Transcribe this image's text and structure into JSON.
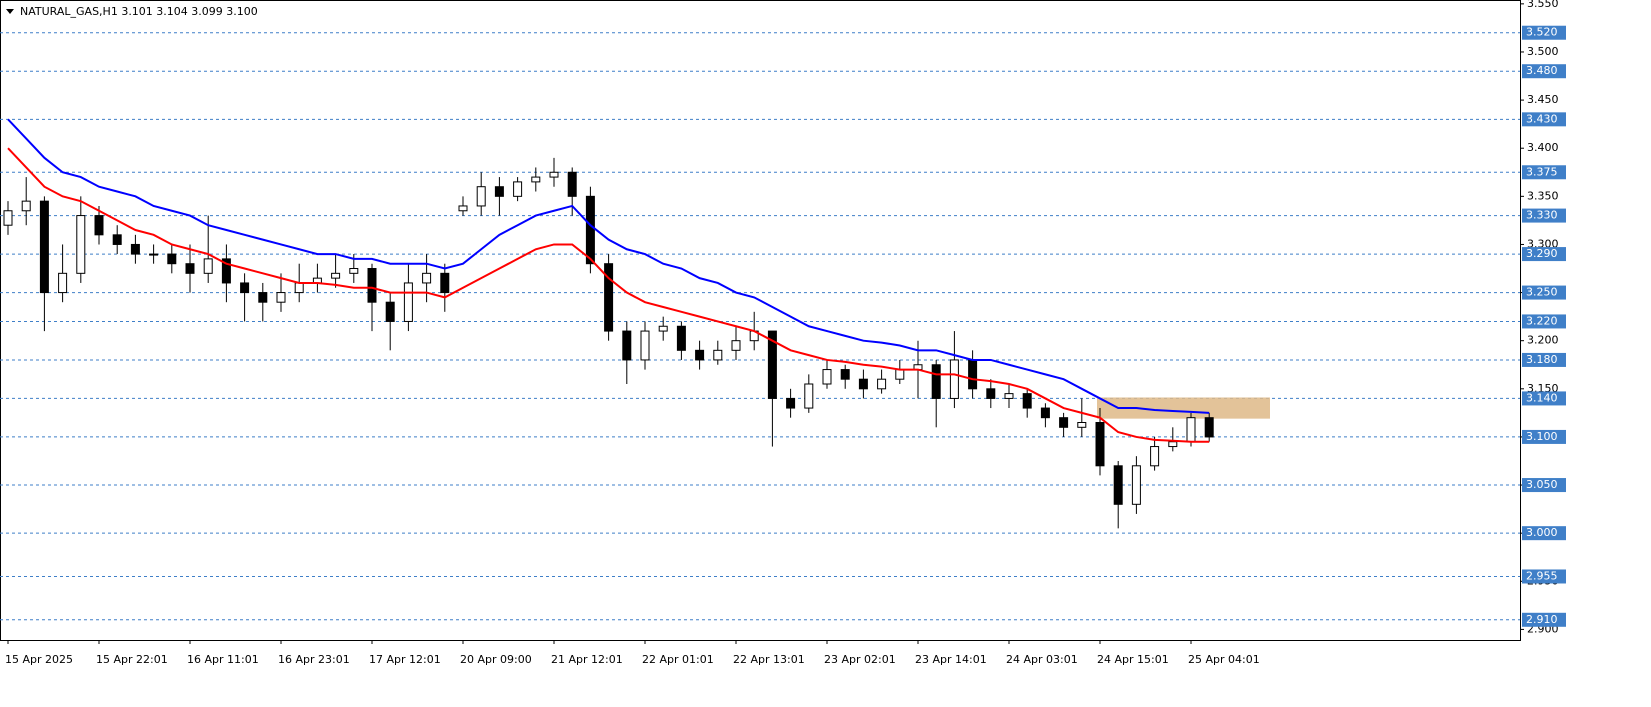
{
  "chart_data": {
    "type": "candlestick",
    "title": "NATURAL_GAS,H1  3.101 3.104 3.099 3.100",
    "categories": [
      "15 Apr 2025",
      null,
      null,
      null,
      null,
      "15 Apr 22:01",
      null,
      null,
      null,
      null,
      "16 Apr 11:01",
      null,
      null,
      null,
      null,
      "16 Apr 23:01",
      null,
      null,
      null,
      null,
      "17 Apr 12:01",
      null,
      null,
      null,
      null,
      "20 Apr 09:00",
      null,
      null,
      null,
      null,
      "21 Apr 12:01",
      null,
      null,
      null,
      null,
      "22 Apr 01:01",
      null,
      null,
      null,
      null,
      "22 Apr 13:01",
      null,
      null,
      null,
      null,
      "23 Apr 02:01",
      null,
      null,
      null,
      null,
      "23 Apr 14:01",
      null,
      null,
      null,
      null,
      "24 Apr 03:01",
      null,
      null,
      null,
      null,
      "24 Apr 15:01",
      null,
      null,
      null,
      null,
      "25 Apr 04:01",
      null
    ],
    "open": [
      3.32,
      3.335,
      3.345,
      3.25,
      3.27,
      3.33,
      3.31,
      3.3,
      3.29,
      3.29,
      3.28,
      3.27,
      3.285,
      3.26,
      3.25,
      3.24,
      3.25,
      3.26,
      3.265,
      3.27,
      3.275,
      3.24,
      3.22,
      3.26,
      3.27,
      3.335,
      3.34,
      3.36,
      3.35,
      3.365,
      3.37,
      3.375,
      3.35,
      3.28,
      3.21,
      3.18,
      3.21,
      3.215,
      3.19,
      3.18,
      3.19,
      3.2,
      3.21,
      3.14,
      3.13,
      3.155,
      3.17,
      3.16,
      3.15,
      3.16,
      3.17,
      3.175,
      3.14,
      3.18,
      3.15,
      3.14,
      3.145,
      3.13,
      3.12,
      3.11,
      3.115,
      3.07,
      3.03,
      3.07,
      3.09,
      3.095,
      3.12
    ],
    "high": [
      3.345,
      3.37,
      3.35,
      3.3,
      3.35,
      3.34,
      3.32,
      3.31,
      3.3,
      3.3,
      3.3,
      3.33,
      3.3,
      3.27,
      3.26,
      3.27,
      3.28,
      3.28,
      3.29,
      3.29,
      3.28,
      3.25,
      3.28,
      3.29,
      3.28,
      3.35,
      3.375,
      3.37,
      3.37,
      3.38,
      3.39,
      3.38,
      3.36,
      3.29,
      3.22,
      3.22,
      3.225,
      3.22,
      3.2,
      3.2,
      3.215,
      3.23,
      3.21,
      3.15,
      3.165,
      3.18,
      3.175,
      3.17,
      3.17,
      3.18,
      3.2,
      3.18,
      3.21,
      3.19,
      3.16,
      3.155,
      3.15,
      3.135,
      3.125,
      3.14,
      3.13,
      3.075,
      3.08,
      3.1,
      3.11,
      3.125,
      3.125
    ],
    "low": [
      3.31,
      3.32,
      3.21,
      3.24,
      3.26,
      3.3,
      3.29,
      3.28,
      3.28,
      3.27,
      3.25,
      3.26,
      3.24,
      3.22,
      3.22,
      3.23,
      3.24,
      3.25,
      3.255,
      3.26,
      3.21,
      3.19,
      3.21,
      3.24,
      3.23,
      3.33,
      3.33,
      3.33,
      3.345,
      3.355,
      3.36,
      3.33,
      3.27,
      3.2,
      3.155,
      3.17,
      3.2,
      3.18,
      3.17,
      3.175,
      3.18,
      3.19,
      3.09,
      3.12,
      3.125,
      3.15,
      3.15,
      3.14,
      3.145,
      3.155,
      3.14,
      3.11,
      3.13,
      3.14,
      3.13,
      3.13,
      3.12,
      3.11,
      3.1,
      3.1,
      3.06,
      3.005,
      3.02,
      3.065,
      3.085,
      3.09,
      3.095
    ],
    "close": [
      3.335,
      3.345,
      3.25,
      3.27,
      3.33,
      3.31,
      3.3,
      3.29,
      3.29,
      3.28,
      3.27,
      3.285,
      3.26,
      3.25,
      3.24,
      3.25,
      3.26,
      3.265,
      3.27,
      3.275,
      3.24,
      3.22,
      3.26,
      3.27,
      3.25,
      3.34,
      3.36,
      3.35,
      3.365,
      3.37,
      3.375,
      3.35,
      3.28,
      3.21,
      3.18,
      3.21,
      3.215,
      3.19,
      3.18,
      3.19,
      3.2,
      3.21,
      3.14,
      3.13,
      3.155,
      3.17,
      3.16,
      3.15,
      3.16,
      3.17,
      3.175,
      3.14,
      3.18,
      3.15,
      3.14,
      3.145,
      3.13,
      3.12,
      3.11,
      3.115,
      3.07,
      3.03,
      3.07,
      3.09,
      3.095,
      3.12,
      3.1
    ],
    "ma_lines": [
      {
        "color": "#0000ff",
        "values": [
          3.43,
          3.41,
          3.39,
          3.375,
          3.37,
          3.36,
          3.355,
          3.35,
          3.34,
          3.335,
          3.33,
          3.32,
          3.315,
          3.31,
          3.305,
          3.3,
          3.295,
          3.29,
          3.29,
          3.285,
          3.285,
          3.28,
          3.28,
          3.28,
          3.275,
          3.28,
          3.295,
          3.31,
          3.32,
          3.33,
          3.335,
          3.34,
          3.32,
          3.305,
          3.295,
          3.29,
          3.28,
          3.275,
          3.265,
          3.26,
          3.25,
          3.245,
          3.235,
          3.225,
          3.215,
          3.21,
          3.205,
          3.2,
          3.198,
          3.195,
          3.19,
          3.19,
          3.185,
          3.18,
          3.18,
          3.175,
          3.17,
          3.165,
          3.16,
          3.15,
          3.14,
          3.13,
          3.13,
          3.128,
          3.127,
          3.126,
          3.125
        ]
      },
      {
        "color": "#ff0000",
        "values": [
          3.4,
          3.38,
          3.36,
          3.35,
          3.345,
          3.335,
          3.325,
          3.315,
          3.31,
          3.3,
          3.295,
          3.29,
          3.28,
          3.275,
          3.27,
          3.265,
          3.26,
          3.26,
          3.258,
          3.255,
          3.255,
          3.25,
          3.25,
          3.25,
          3.245,
          3.255,
          3.265,
          3.275,
          3.285,
          3.295,
          3.3,
          3.3,
          3.285,
          3.265,
          3.25,
          3.24,
          3.235,
          3.23,
          3.225,
          3.22,
          3.215,
          3.21,
          3.2,
          3.19,
          3.185,
          3.18,
          3.178,
          3.175,
          3.173,
          3.17,
          3.17,
          3.165,
          3.165,
          3.16,
          3.158,
          3.155,
          3.15,
          3.14,
          3.13,
          3.125,
          3.12,
          3.105,
          3.1,
          3.097,
          3.096,
          3.095,
          3.095
        ]
      }
    ],
    "ylim": [
      2.889,
      3.554
    ],
    "yticks": [
      {
        "value": 3.55,
        "label": "3.550"
      },
      {
        "value": 3.5,
        "label": "3.500"
      },
      {
        "value": 3.45,
        "label": "3.450"
      },
      {
        "value": 3.4,
        "label": "3.400"
      },
      {
        "value": 3.35,
        "label": "3.350"
      },
      {
        "value": 3.3,
        "label": "3.300"
      },
      {
        "value": 3.25,
        "label": "3.250"
      },
      {
        "value": 3.2,
        "label": "3.200"
      },
      {
        "value": 3.15,
        "label": "3.150"
      },
      {
        "value": 3.1,
        "label": "3.100"
      },
      {
        "value": 3.05,
        "label": "3.050"
      },
      {
        "value": 3,
        "label": "3.000"
      },
      {
        "value": 2.95,
        "label": "2.950"
      },
      {
        "value": 2.9,
        "label": "2.900"
      }
    ],
    "levels": [
      {
        "value": 3.52,
        "label": "3.520"
      },
      {
        "value": 3.48,
        "label": "3.480"
      },
      {
        "value": 3.43,
        "label": "3.430"
      },
      {
        "value": 3.375,
        "label": "3.375"
      },
      {
        "value": 3.33,
        "label": "3.330"
      },
      {
        "value": 3.29,
        "label": "3.290"
      },
      {
        "value": 3.25,
        "label": "3.250"
      },
      {
        "value": 3.22,
        "label": "3.220"
      },
      {
        "value": 3.18,
        "label": "3.180"
      },
      {
        "value": 3.14,
        "label": "3.140"
      },
      {
        "value": 3.1,
        "label": "3.100"
      },
      {
        "value": 3.05,
        "label": "3.050"
      },
      {
        "value": 3,
        "label": "3.000"
      },
      {
        "value": 2.955,
        "label": "2.955"
      },
      {
        "value": 2.91,
        "label": "2.910"
      }
    ],
    "level_color": "#3f7fc8",
    "zone": {
      "from": 3.119,
      "to": 3.141,
      "color": "#deb887"
    },
    "bull_color": "#ffffff",
    "bear_color": "#000000"
  }
}
